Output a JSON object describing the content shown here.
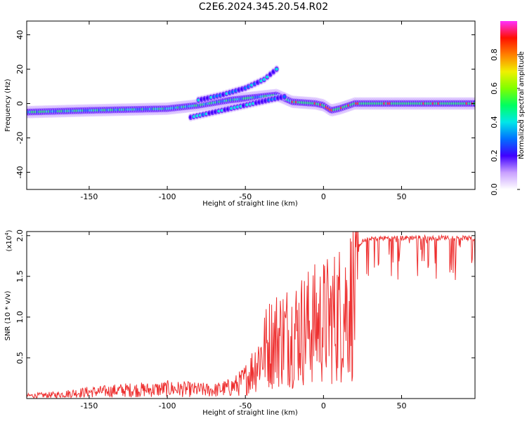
{
  "title": "C2E6.2024.345.20.54.R02",
  "top_plot": {
    "xlabel": "Height of straight line (km)",
    "ylabel": "Frequency (Hz)",
    "colorbar_label": "Normalized spectral amplitude"
  },
  "bottom_plot": {
    "xlabel": "Height of straight line (km)",
    "ylabel": "SNR (10 * v/v)",
    "scale_label": "(x10",
    "scale_exp": "4",
    "scale_close": ")"
  },
  "colors": {
    "snr_line": "#ee3030",
    "frame": "#000000"
  },
  "chart_data": [
    {
      "type": "heatmap",
      "xlabel": "Height of straight line (km)",
      "ylabel": "Frequency (Hz)",
      "xlim": [
        -190,
        97
      ],
      "ylim": [
        -50,
        48
      ],
      "x_ticks": [
        -150,
        -100,
        -50,
        0,
        50
      ],
      "y_ticks": [
        -40,
        -20,
        0,
        20,
        40
      ],
      "colorbar": {
        "label": "Normalized spectral amplitude",
        "range": [
          0,
          1
        ],
        "ticks": [
          0.0,
          0.2,
          0.4,
          0.6,
          0.8
        ]
      },
      "tracks": [
        {
          "x": [
            -190,
            -150,
            -100,
            -80,
            -60,
            -40,
            -30,
            -20,
            -5,
            0,
            5,
            10,
            20,
            50,
            97
          ],
          "y": [
            -5,
            -4,
            -3,
            -1,
            2,
            4,
            5,
            1,
            0,
            -1,
            -4,
            -3,
            0,
            0,
            0
          ]
        },
        {
          "x": [
            -85,
            -70,
            -55,
            -40,
            -30,
            -25
          ],
          "y": [
            -8,
            -5,
            -2,
            1,
            3,
            4
          ]
        },
        {
          "x": [
            -80,
            -65,
            -50,
            -38,
            -30
          ],
          "y": [
            2,
            5,
            9,
            14,
            20
          ]
        }
      ]
    },
    {
      "type": "line",
      "xlabel": "Height of straight line (km)",
      "ylabel": "SNR (10 * v/v)",
      "xlim": [
        -190,
        97
      ],
      "ylim": [
        0,
        2.05
      ],
      "y_scale": "x10^4",
      "x_ticks": [
        -150,
        -100,
        -50,
        0,
        50
      ],
      "y_ticks": [
        0.5,
        1.0,
        1.5,
        2.0
      ],
      "series": [
        {
          "x": [
            -190,
            -170,
            -160,
            -150,
            -140,
            -130,
            -120,
            -110,
            -100,
            -90,
            -80,
            -70,
            -60,
            -55,
            -50,
            -45,
            -40,
            -35,
            -30,
            -25,
            -20,
            -15,
            -10,
            -5,
            0,
            5,
            10,
            15,
            20,
            25,
            30,
            40,
            50,
            60,
            70,
            80,
            90,
            97
          ],
          "values": [
            0.05,
            0.07,
            0.1,
            0.12,
            0.13,
            0.15,
            0.16,
            0.16,
            0.18,
            0.17,
            0.16,
            0.15,
            0.2,
            0.25,
            0.35,
            0.55,
            0.8,
            1.0,
            1.1,
            1.15,
            1.2,
            1.25,
            1.3,
            1.35,
            1.4,
            1.45,
            1.55,
            1.7,
            1.85,
            1.93,
            1.96,
            1.97,
            1.97,
            1.98,
            1.97,
            1.98,
            1.97,
            1.96
          ]
        }
      ]
    }
  ]
}
